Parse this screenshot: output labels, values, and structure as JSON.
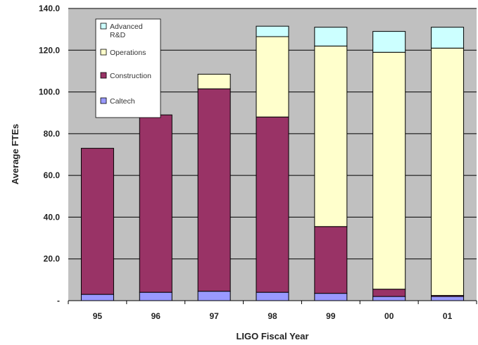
{
  "chart_data": {
    "type": "bar",
    "stacked": true,
    "categories": [
      "95",
      "96",
      "97",
      "98",
      "99",
      "00",
      "01"
    ],
    "series": [
      {
        "name": "Caltech",
        "color": "#9999ff",
        "values": [
          3.0,
          4.0,
          4.5,
          4.0,
          3.5,
          2.0,
          2.0
        ]
      },
      {
        "name": "Construction",
        "color": "#993366",
        "values": [
          70.0,
          85.0,
          97.0,
          84.0,
          32.0,
          3.5,
          0.5
        ]
      },
      {
        "name": "Operations",
        "color": "#ffffcc",
        "values": [
          0.0,
          0.0,
          7.0,
          38.5,
          86.5,
          113.5,
          118.5
        ]
      },
      {
        "name": "Advanced R&D",
        "color": "#ccffff",
        "values": [
          0.0,
          0.0,
          0.0,
          5.0,
          9.0,
          10.0,
          10.0
        ]
      }
    ],
    "yticks": [
      "-",
      "20.0",
      "40.0",
      "60.0",
      "80.0",
      "100.0",
      "120.0",
      "140.0"
    ],
    "ylim": [
      0,
      140
    ],
    "xlabel": "LIGO Fiscal Year",
    "ylabel": "Average FTEs",
    "grid": true,
    "legend": {
      "position": "top-left",
      "entries": [
        {
          "lines": [
            "Advanced",
            "R&D"
          ],
          "color": "#ccffff"
        },
        {
          "lines": [
            "Operations"
          ],
          "color": "#ffffcc"
        },
        {
          "lines": [
            "Construction"
          ],
          "color": "#993366"
        },
        {
          "lines": [
            "Caltech"
          ],
          "color": "#9999ff"
        }
      ]
    },
    "plot_background": "#c0c0c0",
    "gridline_color": "#000000"
  }
}
